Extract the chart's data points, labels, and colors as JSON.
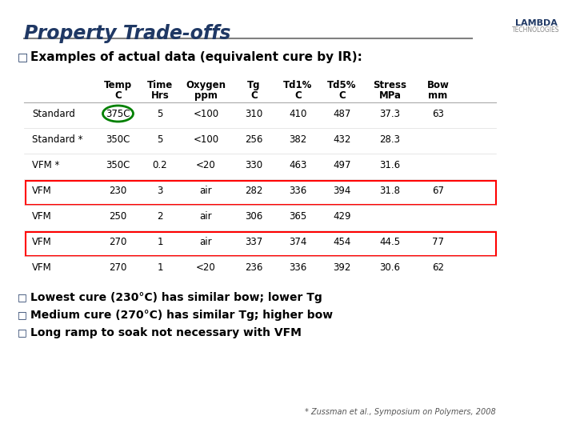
{
  "title": "Property Trade-offs",
  "subtitle": "Examples of actual data (equivalent cure by IR):",
  "headers": [
    "",
    "Temp\nC",
    "Time\nHrs",
    "Oxygen\nppm",
    "Tg\nC",
    "Td1%\nC",
    "Td5%\nC",
    "Stress\nMPa",
    "Bow\nmm"
  ],
  "rows": [
    [
      "Standard",
      "375C",
      "5",
      "<100",
      "310",
      "410",
      "487",
      "37.3",
      "63"
    ],
    [
      "Standard *",
      "350C",
      "5",
      "<100",
      "256",
      "382",
      "432",
      "28.3",
      ""
    ],
    [
      "VFM *",
      "350C",
      "0.2",
      "<20",
      "330",
      "463",
      "497",
      "31.6",
      ""
    ],
    [
      "VFM",
      "230",
      "3",
      "air",
      "282",
      "336",
      "394",
      "31.8",
      "67"
    ],
    [
      "VFM",
      "250",
      "2",
      "air",
      "306",
      "365",
      "429",
      "",
      ""
    ],
    [
      "VFM",
      "270",
      "1",
      "air",
      "337",
      "374",
      "454",
      "44.5",
      "77"
    ],
    [
      "VFM",
      "270",
      "1",
      "<20",
      "236",
      "336",
      "392",
      "30.6",
      "62"
    ]
  ],
  "circled_row": 0,
  "circled_col": 1,
  "red_boxed_rows": [
    3,
    5
  ],
  "bullet_points": [
    "Lowest cure (230°C) has similar bow; lower Tg",
    "Medium cure (270°C) has similar Tg; higher bow",
    "Long ramp to soak not necessary with VFM"
  ],
  "footnote": "* Zussman et al., Symposium on Polymers, 2008",
  "title_color": "#1F3864",
  "title_italic": true,
  "subtitle_color": "#000000",
  "table_text_color": "#000000",
  "header_color": "#000000",
  "bg_color": "#FFFFFF",
  "accent_line_color": "#808080",
  "logo_text": "LAMBDA\nTECHNOLOGIES"
}
